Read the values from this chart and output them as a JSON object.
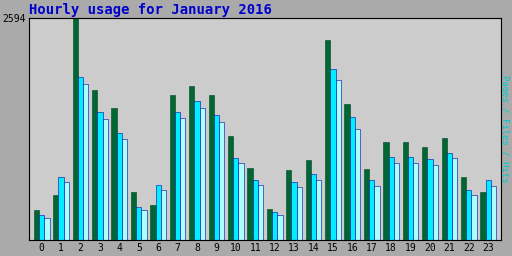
{
  "title": "Hourly usage for January 2016",
  "title_color": "#0000cc",
  "title_fontsize": 10,
  "ylabel": "Pages / Files / Hits",
  "hours": [
    0,
    1,
    2,
    3,
    4,
    5,
    6,
    7,
    8,
    9,
    10,
    11,
    12,
    13,
    14,
    15,
    16,
    17,
    18,
    19,
    20,
    21,
    22,
    23
  ],
  "hits": [
    300,
    740,
    1900,
    1500,
    1250,
    390,
    650,
    1500,
    1620,
    1460,
    960,
    700,
    330,
    680,
    770,
    2000,
    1440,
    700,
    970,
    970,
    950,
    1020,
    590,
    700
  ],
  "files": [
    260,
    680,
    1820,
    1420,
    1180,
    350,
    590,
    1430,
    1540,
    1380,
    900,
    650,
    300,
    620,
    710,
    1870,
    1300,
    640,
    900,
    900,
    880,
    960,
    530,
    640
  ],
  "pages": [
    350,
    530,
    2594,
    1750,
    1540,
    570,
    410,
    1700,
    1800,
    1700,
    1220,
    840,
    370,
    820,
    940,
    2340,
    1590,
    830,
    1150,
    1150,
    1090,
    1200,
    740,
    570
  ],
  "ylim": [
    0,
    2594
  ],
  "bar_width": 0.27,
  "bg_color": "#aaaaaa",
  "plot_bg_color": "#cccccc",
  "hits_color": "#00eeff",
  "hits_edge": "#0000aa",
  "files_color": "#aaffff",
  "files_edge": "#0000aa",
  "pages_color": "#006633",
  "pages_edge": "#004422",
  "font_family": "monospace",
  "ylabel_color": "#00cccc"
}
